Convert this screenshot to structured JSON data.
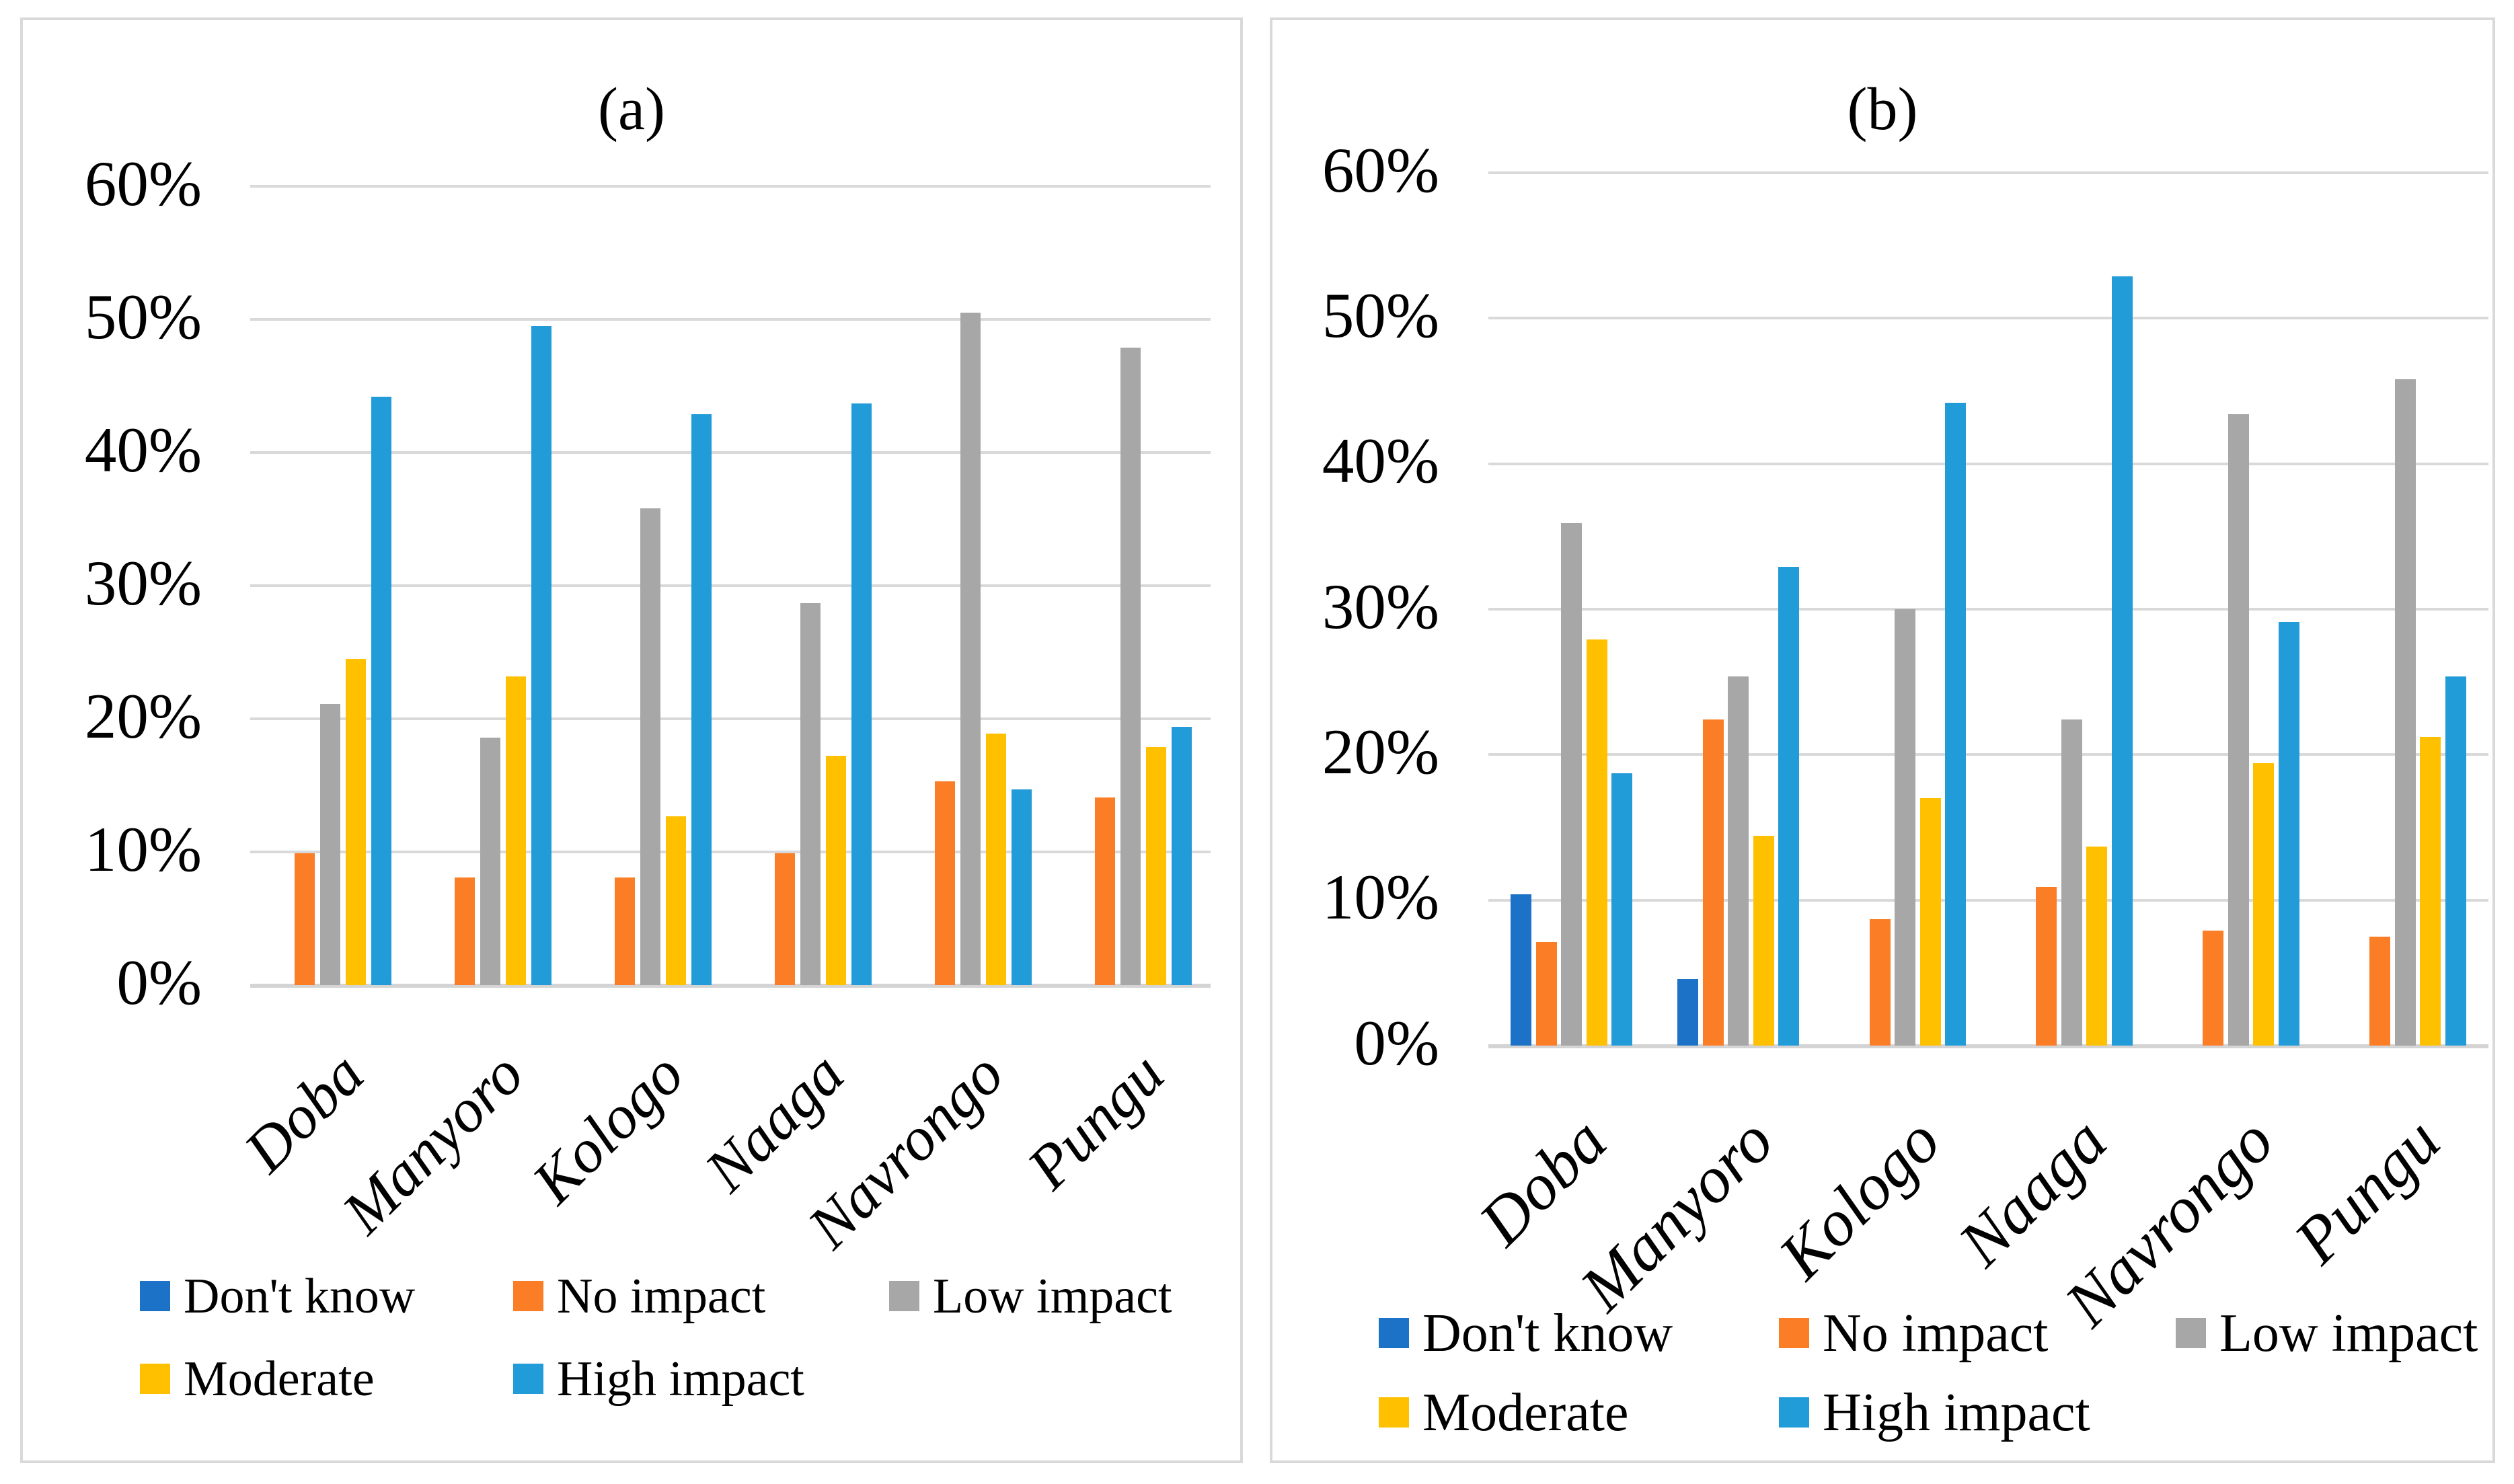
{
  "figure": {
    "background": "#FFFFFF",
    "panel_border_color": "#D9D9D9",
    "gridline_color": "#D9D9D9",
    "axis_line_color": "#D4D4D4",
    "text_color": "#000000",
    "value_unit": "%"
  },
  "chart_data": [
    {
      "panel": "a",
      "type": "bar",
      "title": "(a)",
      "categories": [
        "Doba",
        "Manyoro",
        "Kologo",
        "Naaga",
        "Navrongo",
        "Pungu"
      ],
      "y_ticks_top_to_bottom": [
        "60%",
        "50%",
        "40%",
        "30%",
        "20%",
        "10%",
        "0%"
      ],
      "ylim": [
        0,
        60
      ],
      "grid": "horizontal",
      "legend_position": "bottom",
      "legend_rows": [
        [
          "Don't know",
          "No impact",
          "Low impact"
        ],
        [
          "Moderate",
          "High impact"
        ]
      ],
      "series": [
        {
          "name": "Don't know",
          "color": "#1C72C6",
          "values": [
            0,
            0,
            0,
            0,
            0,
            0
          ]
        },
        {
          "name": "No impact",
          "color": "#FB7D25",
          "values": [
            9.9,
            8.1,
            8.1,
            9.9,
            15.3,
            14.1
          ]
        },
        {
          "name": "Low impact",
          "color": "#A7A7A7",
          "values": [
            21.1,
            18.6,
            35.8,
            28.7,
            50.5,
            47.9
          ]
        },
        {
          "name": "Moderate",
          "color": "#FFC000",
          "values": [
            24.5,
            23.2,
            12.7,
            17.2,
            18.9,
            17.9
          ]
        },
        {
          "name": "High impact",
          "color": "#219CD8",
          "values": [
            44.2,
            49.5,
            42.9,
            43.7,
            14.7,
            19.4
          ]
        }
      ]
    },
    {
      "panel": "b",
      "type": "bar",
      "title": "(b)",
      "categories": [
        "Doba",
        "Manyoro",
        "Kologo",
        "Naaga",
        "Navrongo",
        "Pungu"
      ],
      "y_ticks_top_to_bottom": [
        "60%",
        "50%",
        "40%",
        "30%",
        "20%",
        "10%",
        "0%"
      ],
      "ylim": [
        0,
        60
      ],
      "grid": "horizontal",
      "legend_position": "bottom",
      "legend_rows": [
        [
          "Don't know",
          "No impact",
          "Low impact"
        ],
        [
          "Moderate",
          "High impact"
        ]
      ],
      "series": [
        {
          "name": "Don't know",
          "color": "#1C72C6",
          "values": [
            10.4,
            4.6,
            0,
            0,
            0,
            0
          ]
        },
        {
          "name": "No impact",
          "color": "#FB7D25",
          "values": [
            7.1,
            22.4,
            8.7,
            10.9,
            7.9,
            7.5
          ]
        },
        {
          "name": "Low impact",
          "color": "#A7A7A7",
          "values": [
            35.9,
            25.4,
            30.0,
            22.4,
            43.4,
            45.8
          ]
        },
        {
          "name": "Moderate",
          "color": "#FFC000",
          "values": [
            27.9,
            14.4,
            17.0,
            13.7,
            19.4,
            21.2
          ]
        },
        {
          "name": "High impact",
          "color": "#219CD8",
          "values": [
            18.7,
            32.9,
            44.2,
            52.9,
            29.1,
            25.4
          ]
        }
      ]
    }
  ]
}
